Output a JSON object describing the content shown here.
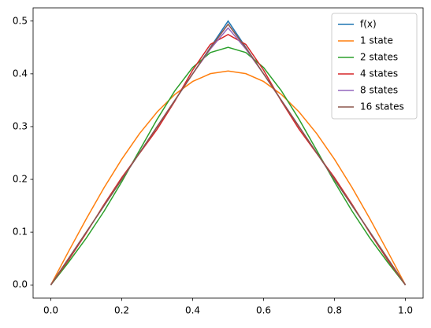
{
  "chart_data": {
    "type": "line",
    "x": [
      0,
      0.05,
      0.1,
      0.15,
      0.2,
      0.25,
      0.3,
      0.35,
      0.4,
      0.45,
      0.5,
      0.55,
      0.6,
      0.65,
      0.7,
      0.75,
      0.8,
      0.85,
      0.9,
      0.95,
      1
    ],
    "series": [
      {
        "name": "f(x)",
        "color": "#1f77b4",
        "values": [
          0,
          0.05,
          0.1,
          0.15,
          0.2,
          0.25,
          0.3,
          0.35,
          0.4,
          0.45,
          0.5,
          0.45,
          0.4,
          0.35,
          0.3,
          0.25,
          0.2,
          0.15,
          0.1,
          0.05,
          0
        ]
      },
      {
        "name": "1 state",
        "color": "#ff7f0e",
        "values": [
          0,
          0.0634,
          0.1252,
          0.184,
          0.2382,
          0.2866,
          0.3279,
          0.3611,
          0.3855,
          0.4003,
          0.4053,
          0.4003,
          0.3855,
          0.3611,
          0.3279,
          0.2866,
          0.2382,
          0.184,
          0.1252,
          0.0634,
          0
        ]
      },
      {
        "name": "2 states",
        "color": "#2ca02c",
        "values": [
          0,
          0.043,
          0.0888,
          0.1395,
          0.1954,
          0.2548,
          0.314,
          0.3681,
          0.412,
          0.4404,
          0.4503,
          0.4404,
          0.412,
          0.3681,
          0.314,
          0.2548,
          0.1954,
          0.1395,
          0.0888,
          0.043,
          0
        ]
      },
      {
        "name": "4 states",
        "color": "#d62728",
        "values": [
          0,
          0.0471,
          0.0983,
          0.1523,
          0.2033,
          0.2492,
          0.2952,
          0.3484,
          0.4071,
          0.4557,
          0.4745,
          0.4557,
          0.4071,
          0.3484,
          0.2952,
          0.2492,
          0.2033,
          0.1523,
          0.0983,
          0.0471,
          0
        ]
      },
      {
        "name": "8 states",
        "color": "#9467bd",
        "values": [
          0,
          0.05,
          0.1,
          0.15,
          0.2,
          0.25,
          0.3,
          0.35,
          0.4,
          0.447,
          0.487,
          0.447,
          0.4,
          0.35,
          0.3,
          0.25,
          0.2,
          0.15,
          0.1,
          0.05,
          0
        ]
      },
      {
        "name": "16 states",
        "color": "#8c564b",
        "values": [
          0,
          0.05,
          0.1,
          0.15,
          0.2,
          0.25,
          0.3,
          0.35,
          0.4,
          0.449,
          0.494,
          0.449,
          0.4,
          0.35,
          0.3,
          0.25,
          0.2,
          0.15,
          0.1,
          0.05,
          0
        ]
      }
    ],
    "xlim": [
      -0.05,
      1.05
    ],
    "ylim": [
      -0.025,
      0.525
    ],
    "xticks": [
      {
        "value": 0,
        "label": "0.0"
      },
      0.2,
      0.4,
      0.6,
      0.8,
      {
        "value": 1,
        "label": "1.0"
      }
    ],
    "yticks": [
      {
        "value": 0,
        "label": "0.0"
      },
      0.1,
      0.2,
      0.3,
      0.4,
      0.5
    ],
    "grid": false,
    "legend": "upper right"
  }
}
